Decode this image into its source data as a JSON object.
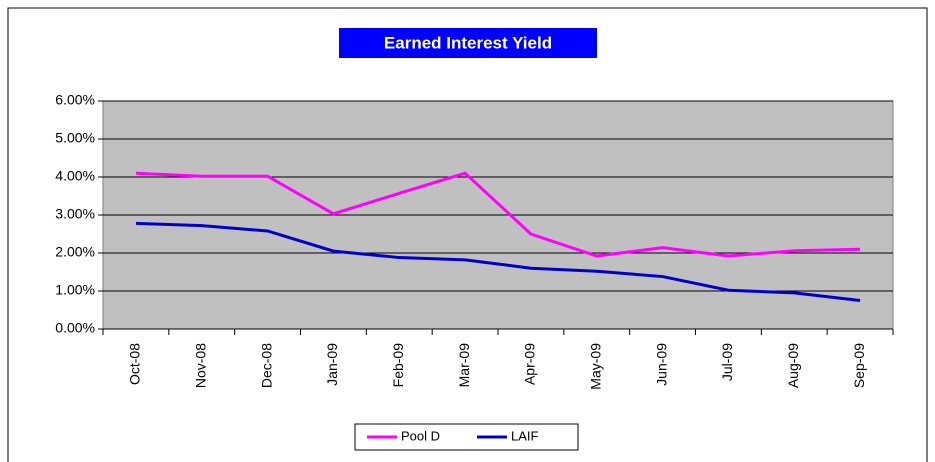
{
  "chart_data": {
    "type": "line",
    "title": "Earned Interest Yield",
    "categories": [
      "Oct-08",
      "Nov-08",
      "Dec-08",
      "Jan-09",
      "Feb-09",
      "Mar-09",
      "Apr-09",
      "May-09",
      "Jun-09",
      "Jul-09",
      "Aug-09",
      "Sep-09"
    ],
    "series": [
      {
        "name": "Pool D",
        "color": "#ff00ff",
        "values": [
          4.1,
          4.02,
          4.02,
          3.03,
          3.57,
          4.1,
          2.5,
          1.92,
          2.14,
          1.92,
          2.06,
          2.1
        ]
      },
      {
        "name": "LAIF",
        "color": "#0000cc",
        "values": [
          2.78,
          2.72,
          2.58,
          2.05,
          1.88,
          1.82,
          1.6,
          1.52,
          1.38,
          1.02,
          0.95,
          0.75
        ]
      }
    ],
    "ylim": [
      0,
      6
    ],
    "yticks": [
      {
        "value": 0,
        "label": "0.00%"
      },
      {
        "value": 1,
        "label": "1.00%"
      },
      {
        "value": 2,
        "label": "2.00%"
      },
      {
        "value": 3,
        "label": "3.00%"
      },
      {
        "value": 4,
        "label": "4.00%"
      },
      {
        "value": 5,
        "label": "5.00%"
      },
      {
        "value": 6,
        "label": "6.00%"
      }
    ],
    "grid": true,
    "legend": "bottom"
  }
}
